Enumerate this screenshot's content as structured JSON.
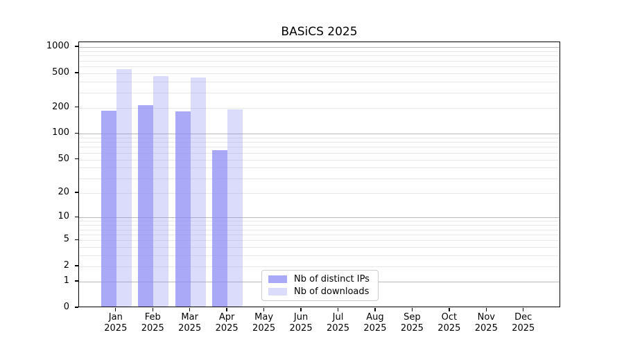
{
  "chart_data": {
    "type": "bar",
    "title": "BASiCS 2025",
    "y_scale": "log1p",
    "y_ticks": [
      0,
      1,
      2,
      5,
      10,
      20,
      50,
      100,
      200,
      500,
      1000
    ],
    "ylim": [
      0,
      1120
    ],
    "grid": "both",
    "legend_position": "lower-center-inside",
    "categories": [
      {
        "month": "Jan",
        "year": "2025"
      },
      {
        "month": "Feb",
        "year": "2025"
      },
      {
        "month": "Mar",
        "year": "2025"
      },
      {
        "month": "Apr",
        "year": "2025"
      },
      {
        "month": "May",
        "year": "2025"
      },
      {
        "month": "Jun",
        "year": "2025"
      },
      {
        "month": "Jul",
        "year": "2025"
      },
      {
        "month": "Aug",
        "year": "2025"
      },
      {
        "month": "Sep",
        "year": "2025"
      },
      {
        "month": "Oct",
        "year": "2025"
      },
      {
        "month": "Nov",
        "year": "2025"
      },
      {
        "month": "Dec",
        "year": "2025"
      }
    ],
    "series": [
      {
        "name": "Nb of distinct IPs",
        "color": "rgba(136,136,245,0.72)",
        "values": [
          185,
          215,
          180,
          64,
          0,
          0,
          0,
          0,
          0,
          0,
          0,
          0
        ]
      },
      {
        "name": "Nb of downloads",
        "color": "rgba(136,136,245,0.30)",
        "values": [
          555,
          468,
          448,
          192,
          0,
          0,
          0,
          0,
          0,
          0,
          0,
          0
        ]
      }
    ]
  },
  "style": {
    "major_grid_color": "#b9b9b9",
    "minor_grid_color": "#e8e8e8",
    "axis_color": "#000000",
    "background": "#ffffff"
  }
}
